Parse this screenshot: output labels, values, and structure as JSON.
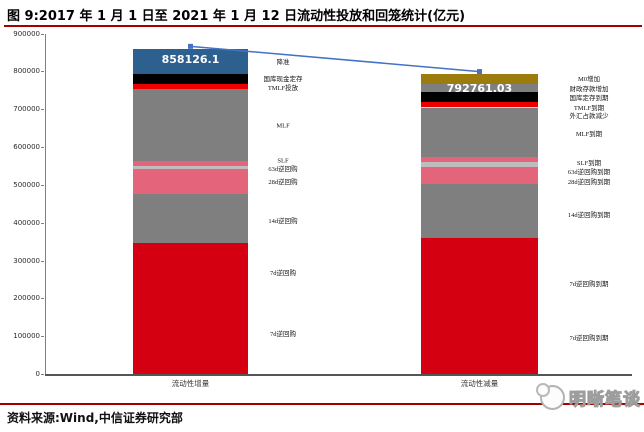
{
  "page": {
    "title": "图 9:2017 年 1 月 1 日至 2021 年 1 月 12 日流动性投放和回笼统计(亿元)",
    "source": "资料来源:Wind,中信证券研究部",
    "watermark": "明晰笔谈",
    "accent_rule_color": "#a40000"
  },
  "chart_data": {
    "type": "bar",
    "variant": "stacked",
    "title": "2017 年 1 月 1 日至 2021 年 1 月 12 日流动性投放和回笼统计",
    "unit": "亿元",
    "ylim": [
      0,
      900000
    ],
    "ytick_step": 100000,
    "yticks": [
      "0",
      "100000",
      "200000",
      "300000",
      "400000",
      "500000",
      "600000",
      "700000",
      "800000",
      "900000"
    ],
    "grid": false,
    "legend": "none",
    "categories": [
      "流动性增量",
      "流动性减量"
    ],
    "bars": [
      {
        "category": "流动性增量",
        "total": 858126.1,
        "total_label": "858126.1",
        "segments": [
          {
            "label": "降准",
            "value": 65800,
            "color": "#2d608f"
          },
          {
            "label": "国库现金定存",
            "value": 26350,
            "color": "#000000"
          },
          {
            "label": "TMLF投放",
            "value": 13100,
            "color": "#ee0000"
          },
          {
            "label": "MLF",
            "value": 189600,
            "color": "#7f7f7f"
          },
          {
            "label": "SLF",
            "value": 13100,
            "color": "#e4647c"
          },
          {
            "label": "63d逆回购",
            "value": 7900,
            "color": "#bdbdbd"
          },
          {
            "label": "28d逆回购",
            "value": 65800,
            "color": "#e4647c"
          },
          {
            "label": "14d逆回购",
            "value": 129000,
            "color": "#7f7f7f"
          },
          {
            "label": "7d逆回购",
            "value": 347476,
            "color": "#d40011"
          }
        ]
      },
      {
        "category": "流动性减量",
        "total": 792761.03,
        "total_label": "792761.03",
        "segments": [
          {
            "label": "M0增加",
            "value": 26400,
            "color": "#9c7c0c"
          },
          {
            "label": "财政存款增加",
            "value": 21100,
            "color": "#7f7f7f"
          },
          {
            "label": "国库定存到期",
            "value": 26400,
            "color": "#000000"
          },
          {
            "label": "TMLF到期",
            "value": 13200,
            "color": "#ee0000"
          },
          {
            "label": "外汇占款减少",
            "value": 2600,
            "color": "#dcdcdc"
          },
          {
            "label": "MLF到期",
            "value": 129300,
            "color": "#7f7f7f"
          },
          {
            "label": "SLF到期",
            "value": 13200,
            "color": "#e4647c"
          },
          {
            "label": "63d逆回购到期",
            "value": 13200,
            "color": "#bdbdbd"
          },
          {
            "label": "28d逆回购到期",
            "value": 44900,
            "color": "#e4647c"
          },
          {
            "label": "14d逆回购到期",
            "value": 142500,
            "color": "#7f7f7f"
          },
          {
            "label": "7d逆回购到期",
            "value": 359961,
            "color": "#d40011"
          }
        ]
      }
    ],
    "annotation_columns": {
      "left": [
        "降准",
        "国库现金定存",
        "TMLF投放",
        "MLF",
        "SLF",
        "63d逆回购",
        "28d逆回购",
        "14d逆回购",
        "7d逆回购",
        "7d逆回购"
      ],
      "right": [
        "M0增加",
        "财政存款增加",
        "国库定存到期",
        "TMLF到期",
        "外汇占款减少",
        "MLF到期",
        "SLF到期",
        "63d逆回购到期",
        "28d逆回购到期",
        "14d逆回购到期",
        "7d逆回购到期",
        "7d逆回购到期"
      ]
    },
    "connector": {
      "color": "#4472c4",
      "from_total": 858126.1,
      "to_total": 792761.03
    }
  }
}
